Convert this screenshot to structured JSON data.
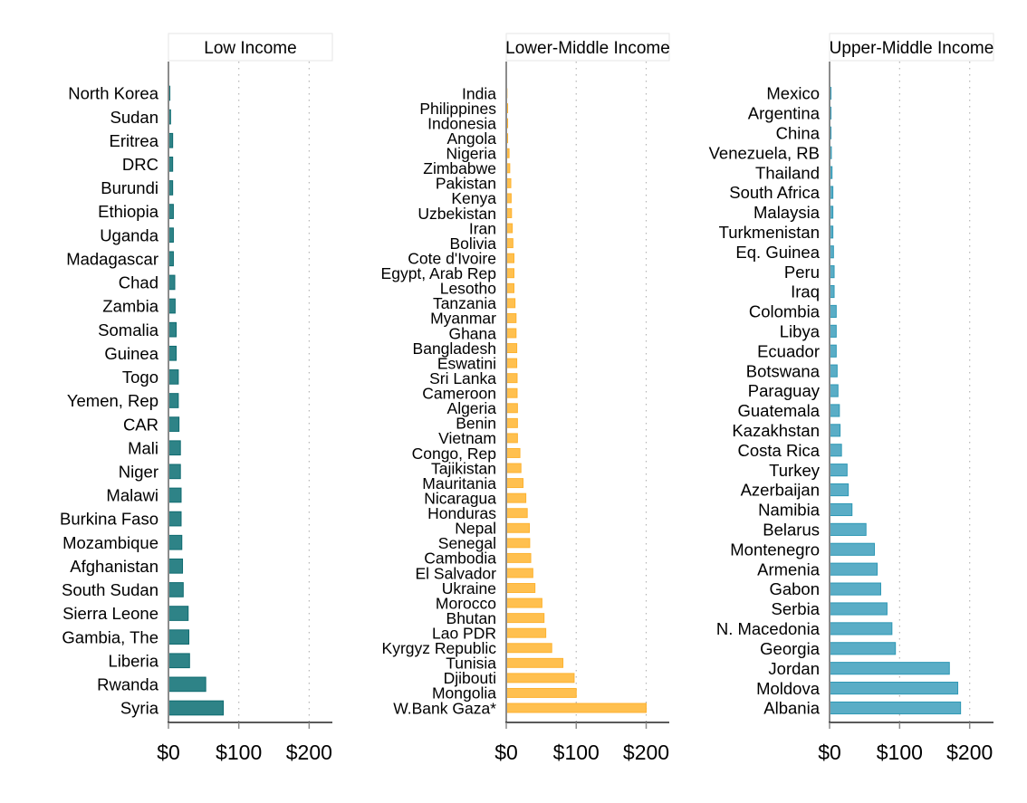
{
  "chart_data": [
    {
      "type": "bar",
      "orientation": "horizontal",
      "title": "Low Income",
      "color": "#2e8387",
      "edge_color": "#0f6b70",
      "xlim": [
        0,
        233
      ],
      "xticks": [
        0,
        100,
        200
      ],
      "xtick_labels": [
        "$0",
        "$100",
        "$200"
      ],
      "grid": "vertical dotted at ticks",
      "categories": [
        "North Korea",
        "Sudan",
        "Eritrea",
        "DRC",
        "Burundi",
        "Ethiopia",
        "Uganda",
        "Madagascar",
        "Chad",
        "Zambia",
        "Somalia",
        "Guinea",
        "Togo",
        "Yemen, Rep",
        "CAR",
        "Mali",
        "Niger",
        "Malawi",
        "Burkina Faso",
        "Mozambique",
        "Afghanistan",
        "South Sudan",
        "Sierra Leone",
        "Gambia, The",
        "Liberia",
        "Rwanda",
        "Syria"
      ],
      "values": [
        2,
        3,
        6,
        6,
        6,
        7,
        7,
        7,
        9,
        9.5,
        11,
        11,
        14,
        14,
        15,
        17,
        17,
        18,
        18,
        19,
        20,
        21,
        28,
        29,
        30,
        53,
        78
      ]
    },
    {
      "type": "bar",
      "orientation": "horizontal",
      "title": "Lower-Middle Income",
      "color": "#ffc04f",
      "edge_color": "#fdb230",
      "xlim": [
        0,
        233
      ],
      "xticks": [
        0,
        100,
        200
      ],
      "xtick_labels": [
        "$0",
        "$100",
        "$200"
      ],
      "grid": "vertical dotted at ticks",
      "categories": [
        "India",
        "Philippines",
        "Indonesia",
        "Angola",
        "Nigeria",
        "Zimbabwe",
        "Pakistan",
        "Kenya",
        "Uzbekistan",
        "Iran",
        "Bolivia",
        "Cote d'Ivoire",
        "Egypt, Arab Rep",
        "Lesotho",
        "Tanzania",
        "Myanmar",
        "Ghana",
        "Bangladesh",
        "Eswatini",
        "Sri Lanka",
        "Cameroon",
        "Algeria",
        "Benin",
        "Vietnam",
        "Congo, Rep",
        "Tajikistan",
        "Mauritania",
        "Nicaragua",
        "Honduras",
        "Nepal",
        "Senegal",
        "Cambodia",
        "El Salvador",
        "Ukraine",
        "Morocco",
        "Bhutan",
        "Lao PDR",
        "Kyrgyz Republic",
        "Tunisia",
        "Djibouti",
        "Mongolia",
        "W.Bank Gaza*"
      ],
      "values": [
        1,
        2,
        2,
        2,
        4,
        5,
        6.5,
        7,
        7.5,
        8.6,
        9.5,
        11,
        11,
        11,
        12.5,
        14,
        14,
        15,
        15,
        15.5,
        15.5,
        16,
        16,
        16,
        19.5,
        21,
        24,
        28,
        30,
        33,
        33.5,
        35,
        38,
        41,
        51,
        54,
        56.5,
        65,
        81,
        97,
        100,
        200
      ]
    },
    {
      "type": "bar",
      "orientation": "horizontal",
      "title": "Upper-Middle Income",
      "color": "#5aadc6",
      "edge_color": "#2e98b5",
      "xlim": [
        0,
        234
      ],
      "xticks": [
        0,
        100,
        200
      ],
      "xtick_labels": [
        "$0",
        "$100",
        "$200"
      ],
      "grid": "vertical dotted at ticks",
      "categories": [
        "Mexico",
        "Argentina",
        "China",
        "Venezuela, RB",
        "Thailand",
        "South Africa",
        "Malaysia",
        "Turkmenistan",
        "Eq. Guinea",
        "Peru",
        "Iraq",
        "Colombia",
        "Libya",
        "Ecuador",
        "Botswana",
        "Paraguay",
        "Guatemala",
        "Kazakhstan",
        "Costa Rica",
        "Turkey",
        "Azerbaijan",
        "Namibia",
        "Belarus",
        "Montenegro",
        "Armenia",
        "Gabon",
        "Serbia",
        "N. Macedonia",
        "Georgia",
        "Jordan",
        "Moldova",
        "Albania"
      ],
      "values": [
        2,
        2,
        2,
        2.5,
        3.5,
        4.7,
        4.7,
        4.7,
        5.6,
        6.5,
        6.5,
        9.5,
        9.5,
        9.5,
        10.8,
        12,
        14,
        15,
        17,
        25,
        26.7,
        32,
        52,
        64,
        68,
        73,
        82,
        89,
        94,
        171,
        183,
        187
      ]
    }
  ]
}
